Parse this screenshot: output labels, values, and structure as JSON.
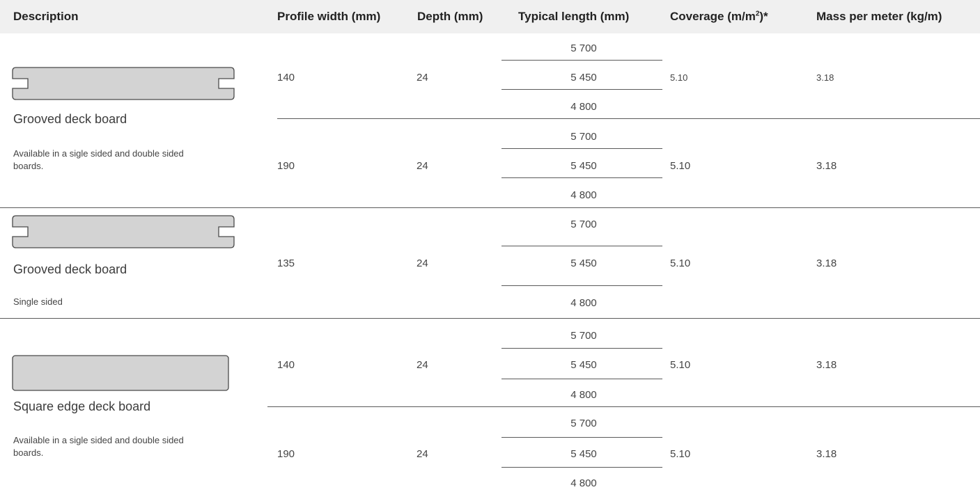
{
  "headers": {
    "description": "Description",
    "profile_width": "Profile width  (mm)",
    "depth": "Depth (mm)",
    "typical_length": "Typical length (mm)",
    "coverage_prefix": "Coverage  (m/m",
    "coverage_sup": "2",
    "coverage_suffix": ")*",
    "mass": "Mass per meter (kg/m)"
  },
  "colors": {
    "header_bg": "#f0f0f0",
    "board_fill": "#d3d3d3",
    "board_stroke": "#4a4a4a",
    "rule": "#5a5a5a"
  },
  "rows": [
    {
      "width": "140",
      "depth": "24",
      "lengths": [
        "5 700",
        "5 450",
        "4 800"
      ],
      "coverage": "5.10",
      "mass": "3.18"
    },
    {
      "width": "190",
      "depth": "24",
      "lengths": [
        "5 700",
        "5 450",
        "4 800"
      ],
      "coverage": "5.10",
      "mass": "3.18"
    },
    {
      "width": "135",
      "depth": "24",
      "lengths": [
        "5 700",
        "5 450",
        "4 800"
      ],
      "coverage": "5.10",
      "mass": "3.18"
    },
    {
      "width": "140",
      "depth": "24",
      "lengths": [
        "5 700",
        "5 450",
        "4 800"
      ],
      "coverage": "5.10",
      "mass": "3.18"
    },
    {
      "width": "190",
      "depth": "24",
      "lengths": [
        "5 700",
        "5 450",
        "4 800"
      ],
      "coverage": "5.10",
      "mass": "3.18"
    }
  ],
  "groups": [
    {
      "icon": "grooved-board-icon",
      "title": "Grooved deck board",
      "note": "Available in a sigle sided and double sided boards."
    },
    {
      "icon": "grooved-board-icon",
      "title": "Grooved deck board",
      "note": "Single sided"
    },
    {
      "icon": "square-edge-board-icon",
      "title": "Square edge deck board",
      "note": "Available in a sigle sided and double sided boards."
    }
  ]
}
